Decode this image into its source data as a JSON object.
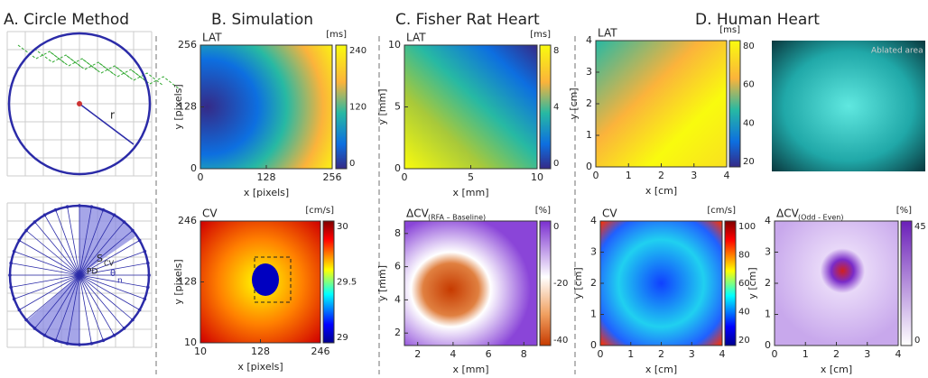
{
  "headers": [
    "A. Circle Method",
    "B. Simulation",
    "C. Fisher Rat Heart",
    "D. Human Heart"
  ],
  "circle_labels": {
    "r": "r",
    "s": "S",
    "s_sub": "CV",
    "pd": "PD",
    "theta": "θ",
    "n": "n"
  },
  "photo_label": "Ablated area",
  "plots": [
    {
      "title": "LAT",
      "unit": "[ms]",
      "xlabel": "x [pixels]",
      "ylabel": "y [pixels]",
      "xticks": [
        "0",
        "128",
        "256"
      ],
      "yticks": [
        "256",
        "128",
        "0"
      ],
      "cbar_ticks": [
        "240",
        "120",
        "0"
      ]
    },
    {
      "title": "CV",
      "unit": "[cm/s]",
      "xlabel": "x [pixels]",
      "ylabel": "y [pixels]",
      "xticks": [
        "10",
        "128",
        "246"
      ],
      "yticks": [
        "246",
        "128",
        "10"
      ],
      "cbar_ticks": [
        "30",
        "29.5",
        "29"
      ]
    },
    {
      "title": "LAT",
      "unit": "[ms]",
      "xlabel": "x [mm]",
      "ylabel": "y [mm]",
      "xticks": [
        "0",
        "5",
        "10"
      ],
      "yticks": [
        "10",
        "5",
        "0"
      ],
      "cbar_ticks": [
        "8",
        "4",
        "0"
      ]
    },
    {
      "title": "ΔCV",
      "title_sub": "(RFA – Baseline)",
      "unit": "[%]",
      "xlabel": "x [mm]",
      "ylabel": "y [mm]",
      "xticks": [
        "2",
        "4",
        "6",
        "8"
      ],
      "yticks": [
        "8",
        "6",
        "4",
        "2"
      ],
      "cbar_ticks": [
        "0",
        "-20",
        "-40"
      ]
    },
    {
      "title": "LAT",
      "unit": "[ms]",
      "xlabel": "x [cm]",
      "ylabel": "y [cm]",
      "xticks": [
        "0",
        "1",
        "2",
        "3",
        "4"
      ],
      "yticks": [
        "4",
        "3",
        "2",
        "1",
        "0"
      ],
      "cbar_ticks": [
        "80",
        "60",
        "40",
        "20"
      ]
    },
    {
      "title": "CV",
      "unit": "[cm/s]",
      "xlabel": "x [cm]",
      "ylabel": "y [cm]",
      "xticks": [
        "0",
        "1",
        "2",
        "3",
        "4"
      ],
      "yticks": [
        "4",
        "3",
        "2",
        "1",
        "0"
      ],
      "cbar_ticks": [
        "100",
        "80",
        "60",
        "40",
        "20"
      ]
    },
    {
      "title": "ΔCV",
      "title_sub": "(Odd - Even)",
      "unit": "[%]",
      "xlabel": "x [cm]",
      "ylabel": "y [cm]",
      "xticks": [
        "0",
        "1",
        "2",
        "3",
        "4"
      ],
      "yticks": [
        "4",
        "3",
        "2",
        "1",
        "0"
      ],
      "cbar_ticks": [
        "45",
        "0"
      ]
    }
  ]
}
